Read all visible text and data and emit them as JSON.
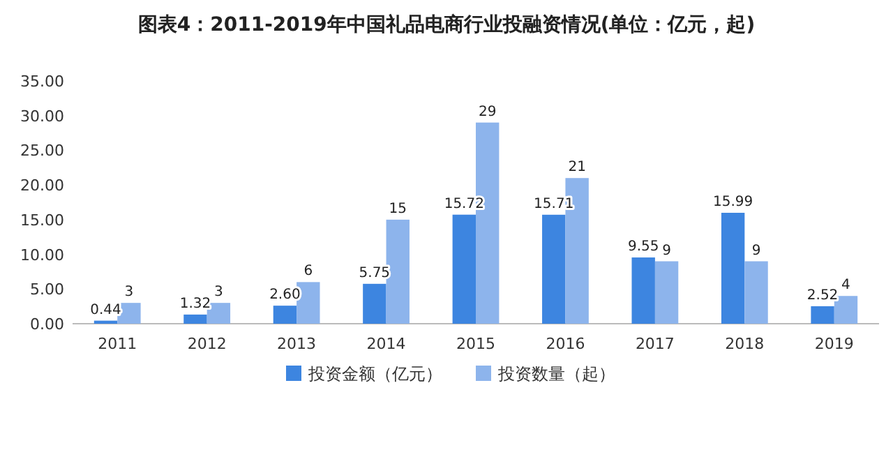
{
  "chart_data": {
    "type": "bar",
    "title": "图表4：2011-2019年中国礼品电商行业投融资情况(单位：亿元，起)",
    "categories": [
      "2011",
      "2012",
      "2013",
      "2014",
      "2015",
      "2016",
      "2017",
      "2018",
      "2019"
    ],
    "series": [
      {
        "name": "投资金额（亿元）",
        "color": "#3d85e0",
        "values": [
          0.44,
          1.32,
          2.6,
          5.75,
          15.72,
          15.71,
          9.55,
          15.99,
          2.52
        ],
        "value_labels": [
          "0.44",
          "1.32",
          "2.60",
          "5.75",
          "15.72",
          "15.71",
          "9.55",
          "15.99",
          "2.52"
        ]
      },
      {
        "name": "投资数量（起）",
        "color": "#8db4ec",
        "values": [
          3,
          3,
          6,
          15,
          29,
          21,
          9,
          9,
          4
        ],
        "value_labels": [
          "3",
          "3",
          "6",
          "15",
          "29",
          "21",
          "9",
          "9",
          "4"
        ]
      }
    ],
    "ylim": [
      0,
      35
    ],
    "yticks": [
      {
        "value": 0,
        "label": "0.00"
      },
      {
        "value": 5,
        "label": "5.00"
      },
      {
        "value": 10,
        "label": "10.00"
      },
      {
        "value": 15,
        "label": "15.00"
      },
      {
        "value": 20,
        "label": "20.00"
      },
      {
        "value": 25,
        "label": "25.00"
      },
      {
        "value": 30,
        "label": "30.00"
      },
      {
        "value": 35,
        "label": "35.00"
      }
    ],
    "grid": false,
    "legend": "bottom"
  }
}
